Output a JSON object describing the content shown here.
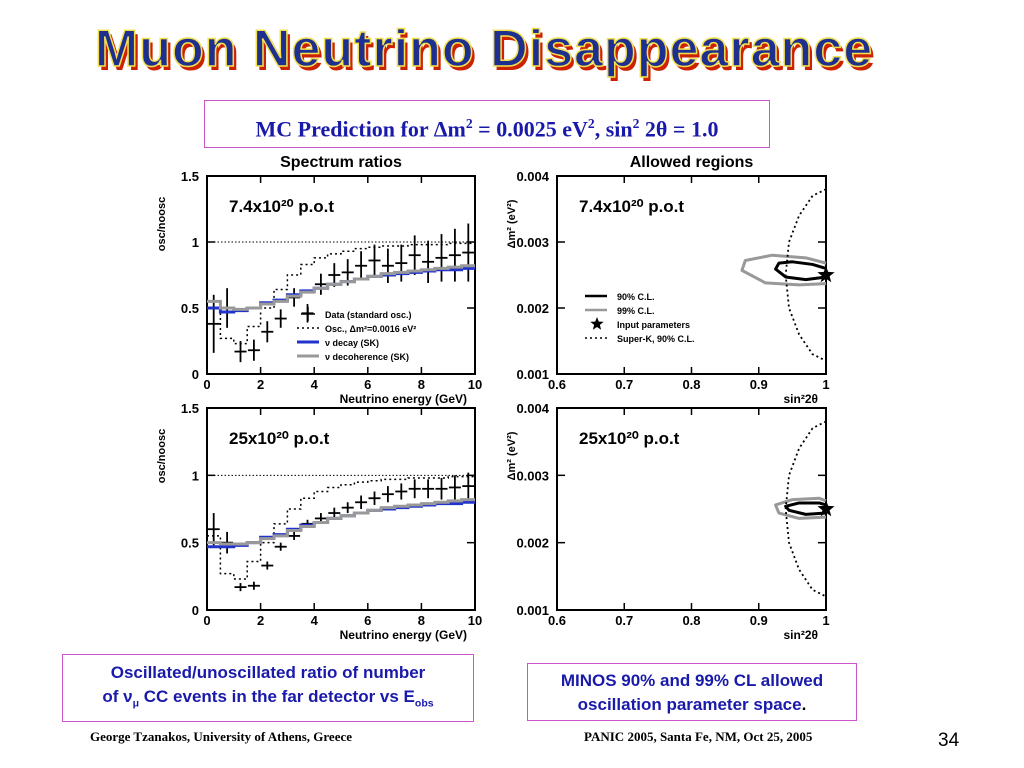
{
  "slide": {
    "title": "Muon Neutrino Disappearance",
    "mc_prediction": {
      "prefix": "MC Prediction for ",
      "delta": "Δ",
      "m": "m",
      "sq1": "2",
      "eq": " = 0.0025 eV",
      "sq2": "2",
      "sin": ", sin",
      "sq3": "2",
      "theta": " 2θ = 1.0"
    },
    "caption_left": {
      "line1": "Oscillated/unoscillated ratio of number",
      "line2_pre": "of ν",
      "line2_sub": "μ",
      "line2_mid": " CC events in the far detector vs E",
      "line2_sub2": "obs"
    },
    "caption_right": {
      "line1": "MINOS 90% and 99% CL allowed",
      "line2": "oscillation parameter space",
      "period": "."
    },
    "footer_left": "George Tzanakos, University of Athens, Greece",
    "footer_right": "PANIC 2005, Santa Fe, NM, Oct 25, 2005",
    "page_number": "34",
    "colors": {
      "title_fill": "#1f2f8f",
      "title_shadow": "#cc2200",
      "title_outline": "#f0e050",
      "box_border": "#cc55cc",
      "text_blue": "#1a1aaa",
      "decay_blue": "#2233cc",
      "decoherence_gray": "#999999"
    }
  },
  "chart_data": [
    {
      "type": "line",
      "title": "Spectrum ratios",
      "annotation": "7.4x10²⁰ p.o.t",
      "xlabel": "Neutrino energy (GeV)",
      "ylabel": "osc/noosc",
      "xlim": [
        0,
        10
      ],
      "ylim": [
        0,
        1.5
      ],
      "xticks": [
        "0",
        "2",
        "4",
        "6",
        "8",
        "10"
      ],
      "yticks": [
        "0",
        "0.5",
        "1",
        "1.5"
      ],
      "legend": [
        "Data (standard osc.)",
        "Osc., Δm²=0.0016 eV²",
        "ν decay (SK)",
        "ν decoherence (SK)"
      ],
      "reference_line": 1.0,
      "series": [
        {
          "name": "Data (standard osc.)",
          "style": "cross",
          "color": "#000000",
          "x": [
            0.25,
            0.75,
            1.25,
            1.75,
            2.25,
            2.75,
            3.25,
            3.75,
            4.25,
            4.75,
            5.25,
            5.75,
            6.25,
            6.75,
            7.25,
            7.75,
            8.25,
            8.75,
            9.25,
            9.75
          ],
          "y": [
            0.38,
            0.5,
            0.17,
            0.18,
            0.32,
            0.42,
            0.58,
            0.46,
            0.68,
            0.75,
            0.77,
            0.82,
            0.86,
            0.82,
            0.84,
            0.9,
            0.85,
            0.88,
            0.9,
            0.92
          ],
          "err": [
            0.22,
            0.15,
            0.08,
            0.08,
            0.08,
            0.07,
            0.07,
            0.07,
            0.08,
            0.09,
            0.1,
            0.11,
            0.12,
            0.13,
            0.14,
            0.15,
            0.16,
            0.18,
            0.2,
            0.22
          ]
        },
        {
          "name": "Osc., Δm²=0.0016 eV²",
          "style": "dotted-step",
          "color": "#000000",
          "x": [
            0,
            0.5,
            1,
            1.5,
            2,
            2.5,
            3,
            3.5,
            4,
            4.5,
            5,
            5.5,
            6,
            6.5,
            7,
            7.5,
            8,
            8.5,
            9,
            9.5,
            10
          ],
          "y": [
            0.55,
            0.27,
            0.23,
            0.36,
            0.5,
            0.64,
            0.75,
            0.83,
            0.88,
            0.91,
            0.93,
            0.95,
            0.96,
            0.97,
            0.97,
            0.98,
            0.98,
            0.98,
            0.99,
            0.99,
            0.99
          ]
        },
        {
          "name": "ν decay (SK)",
          "style": "step",
          "color": "#2233cc",
          "x": [
            0,
            0.5,
            1,
            1.5,
            2,
            2.5,
            3,
            3.5,
            4,
            4.5,
            5,
            5.5,
            6,
            6.5,
            7,
            7.5,
            8,
            8.5,
            9,
            9.5,
            10
          ],
          "y": [
            0.5,
            0.47,
            0.48,
            0.5,
            0.54,
            0.56,
            0.6,
            0.63,
            0.65,
            0.68,
            0.7,
            0.72,
            0.74,
            0.75,
            0.76,
            0.77,
            0.78,
            0.79,
            0.79,
            0.8,
            0.8
          ]
        },
        {
          "name": "ν decoherence (SK)",
          "style": "step",
          "color": "#999999",
          "x": [
            0,
            0.5,
            1,
            1.5,
            2,
            2.5,
            3,
            3.5,
            4,
            4.5,
            5,
            5.5,
            6,
            6.5,
            7,
            7.5,
            8,
            8.5,
            9,
            9.5,
            10
          ],
          "y": [
            0.55,
            0.5,
            0.49,
            0.5,
            0.53,
            0.55,
            0.59,
            0.62,
            0.65,
            0.68,
            0.7,
            0.72,
            0.74,
            0.76,
            0.77,
            0.78,
            0.79,
            0.8,
            0.81,
            0.82,
            0.82
          ]
        }
      ]
    },
    {
      "type": "line",
      "title": "Spectrum ratios",
      "annotation": "25x10²⁰ p.o.t",
      "xlabel": "Neutrino energy (GeV)",
      "ylabel": "osc/noosc",
      "xlim": [
        0,
        10
      ],
      "ylim": [
        0,
        1.5
      ],
      "xticks": [
        "0",
        "2",
        "4",
        "6",
        "8",
        "10"
      ],
      "yticks": [
        "0",
        "0.5",
        "1",
        "1.5"
      ],
      "reference_line": 1.0,
      "series": [
        {
          "name": "Data (standard osc.)",
          "style": "cross",
          "color": "#000000",
          "x": [
            0.25,
            0.75,
            1.25,
            1.75,
            2.25,
            2.75,
            3.25,
            3.75,
            4.25,
            4.75,
            5.25,
            5.75,
            6.25,
            6.75,
            7.25,
            7.75,
            8.25,
            8.75,
            9.25,
            9.75
          ],
          "y": [
            0.6,
            0.5,
            0.17,
            0.18,
            0.33,
            0.47,
            0.55,
            0.64,
            0.68,
            0.72,
            0.76,
            0.8,
            0.83,
            0.86,
            0.88,
            0.9,
            0.9,
            0.9,
            0.91,
            0.92
          ],
          "err": [
            0.12,
            0.08,
            0.03,
            0.03,
            0.03,
            0.03,
            0.03,
            0.03,
            0.04,
            0.04,
            0.04,
            0.05,
            0.05,
            0.06,
            0.06,
            0.07,
            0.07,
            0.08,
            0.09,
            0.1
          ]
        },
        {
          "name": "Osc., Δm²=0.0016 eV²",
          "style": "dotted-step",
          "color": "#000000",
          "x": [
            0,
            0.5,
            1,
            1.5,
            2,
            2.5,
            3,
            3.5,
            4,
            4.5,
            5,
            5.5,
            6,
            6.5,
            7,
            7.5,
            8,
            8.5,
            9,
            9.5,
            10
          ],
          "y": [
            0.55,
            0.27,
            0.23,
            0.36,
            0.5,
            0.64,
            0.75,
            0.83,
            0.88,
            0.91,
            0.93,
            0.95,
            0.96,
            0.97,
            0.97,
            0.98,
            0.98,
            0.98,
            0.99,
            0.99,
            0.99
          ]
        },
        {
          "name": "ν decay (SK)",
          "style": "step",
          "color": "#2233cc",
          "x": [
            0,
            0.5,
            1,
            1.5,
            2,
            2.5,
            3,
            3.5,
            4,
            4.5,
            5,
            5.5,
            6,
            6.5,
            7,
            7.5,
            8,
            8.5,
            9,
            9.5,
            10
          ],
          "y": [
            0.47,
            0.47,
            0.48,
            0.5,
            0.54,
            0.56,
            0.6,
            0.63,
            0.65,
            0.68,
            0.7,
            0.72,
            0.74,
            0.75,
            0.76,
            0.77,
            0.78,
            0.79,
            0.79,
            0.8,
            0.8
          ]
        },
        {
          "name": "ν decoherence (SK)",
          "style": "step",
          "color": "#999999",
          "x": [
            0,
            0.5,
            1,
            1.5,
            2,
            2.5,
            3,
            3.5,
            4,
            4.5,
            5,
            5.5,
            6,
            6.5,
            7,
            7.5,
            8,
            8.5,
            9,
            9.5,
            10
          ],
          "y": [
            0.5,
            0.49,
            0.49,
            0.5,
            0.53,
            0.55,
            0.59,
            0.62,
            0.65,
            0.68,
            0.7,
            0.72,
            0.74,
            0.76,
            0.77,
            0.78,
            0.79,
            0.8,
            0.81,
            0.82,
            0.82
          ]
        }
      ]
    },
    {
      "type": "scatter",
      "title": "Allowed regions",
      "annotation": "7.4x10²⁰ p.o.t",
      "xlabel": "sin²2θ",
      "ylabel": "Δm² (eV²)",
      "xlim": [
        0.6,
        1.0
      ],
      "ylim": [
        0.001,
        0.004
      ],
      "xticks": [
        "0.6",
        "0.7",
        "0.8",
        "0.9",
        "1"
      ],
      "yticks": [
        "0.001",
        "0.002",
        "0.003",
        "0.004"
      ],
      "legend": [
        "90% C.L.",
        "99% C.L.",
        "Input parameters",
        "Super-K, 90% C.L."
      ],
      "input_point": {
        "x": 1.0,
        "y": 0.0025
      },
      "contours": [
        {
          "name": "90% C.L.",
          "style": "solid",
          "color": "#000000",
          "x": [
            1.0,
            0.97,
            0.94,
            0.925,
            0.93,
            0.95,
            0.98,
            1.0
          ],
          "y": [
            0.00247,
            0.00243,
            0.00247,
            0.00259,
            0.00268,
            0.0027,
            0.00266,
            0.0026
          ]
        },
        {
          "name": "99% C.L.",
          "style": "solid",
          "color": "#999999",
          "x": [
            1.0,
            0.96,
            0.91,
            0.875,
            0.88,
            0.92,
            0.97,
            1.0
          ],
          "y": [
            0.00237,
            0.00235,
            0.00238,
            0.00257,
            0.00272,
            0.0028,
            0.00276,
            0.00268
          ]
        },
        {
          "name": "Super-K, 90% C.L.",
          "style": "dotted",
          "color": "#000000",
          "x": [
            1.0,
            0.98,
            0.96,
            0.945,
            0.94,
            0.945,
            0.96,
            0.98,
            1.0
          ],
          "y": [
            0.0038,
            0.0037,
            0.0034,
            0.003,
            0.0025,
            0.002,
            0.0016,
            0.0013,
            0.0012
          ]
        }
      ]
    },
    {
      "type": "scatter",
      "title": "Allowed regions",
      "annotation": "25x10²⁰ p.o.t",
      "xlabel": "sin²2θ",
      "ylabel": "Δm² (eV²)",
      "xlim": [
        0.6,
        1.0
      ],
      "ylim": [
        0.001,
        0.004
      ],
      "xticks": [
        "0.6",
        "0.7",
        "0.8",
        "0.9",
        "1"
      ],
      "yticks": [
        "0.001",
        "0.002",
        "0.003",
        "0.004"
      ],
      "input_point": {
        "x": 1.0,
        "y": 0.0025
      },
      "contours": [
        {
          "name": "90% C.L.",
          "style": "solid",
          "color": "#000000",
          "x": [
            1.0,
            0.97,
            0.945,
            0.94,
            0.96,
            0.99,
            1.0
          ],
          "y": [
            0.00244,
            0.00242,
            0.00248,
            0.00254,
            0.00259,
            0.00259,
            0.00256
          ]
        },
        {
          "name": "99% C.L.",
          "style": "solid",
          "color": "#999999",
          "x": [
            1.0,
            0.96,
            0.93,
            0.925,
            0.95,
            0.99,
            1.0
          ],
          "y": [
            0.00238,
            0.00236,
            0.00244,
            0.00256,
            0.00264,
            0.00266,
            0.00262
          ]
        },
        {
          "name": "Super-K, 90% C.L.",
          "style": "dotted",
          "color": "#000000",
          "x": [
            1.0,
            0.98,
            0.96,
            0.945,
            0.94,
            0.945,
            0.96,
            0.98,
            1.0
          ],
          "y": [
            0.0038,
            0.0037,
            0.0034,
            0.003,
            0.0025,
            0.002,
            0.0016,
            0.0013,
            0.0012
          ]
        }
      ]
    }
  ]
}
